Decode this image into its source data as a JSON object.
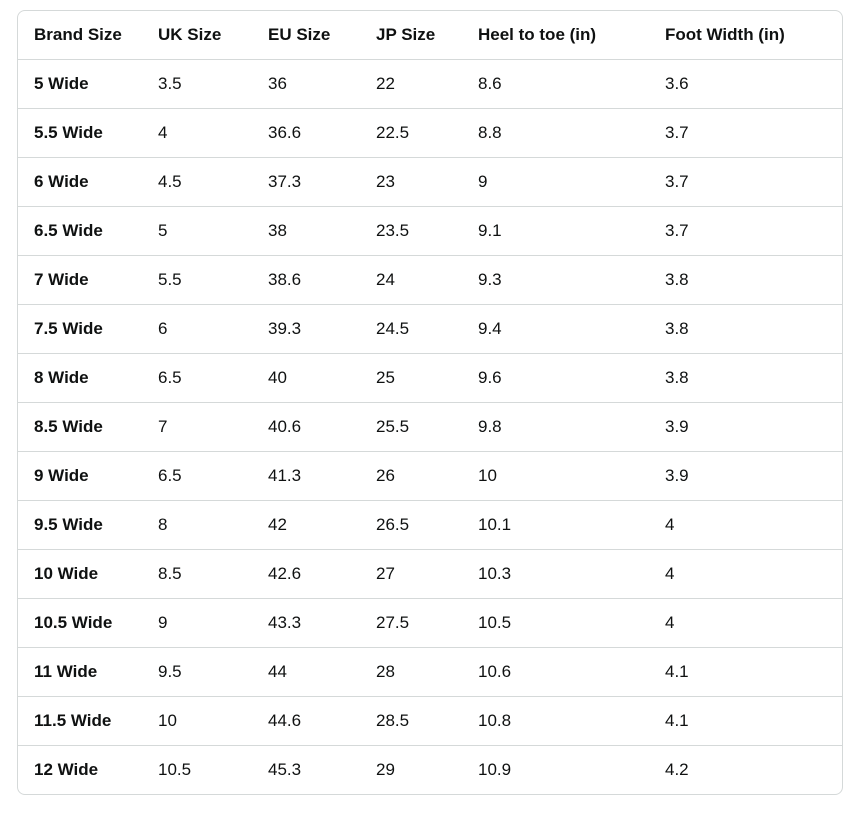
{
  "size_chart": {
    "columns": [
      "Brand Size",
      "UK Size",
      "EU Size",
      "JP Size",
      "Heel to toe (in)",
      "Foot Width (in)"
    ],
    "rows": [
      [
        "5 Wide",
        "3.5",
        "36",
        "22",
        "8.6",
        "3.6"
      ],
      [
        "5.5 Wide",
        "4",
        "36.6",
        "22.5",
        "8.8",
        "3.7"
      ],
      [
        "6 Wide",
        "4.5",
        "37.3",
        "23",
        "9",
        "3.7"
      ],
      [
        "6.5 Wide",
        "5",
        "38",
        "23.5",
        "9.1",
        "3.7"
      ],
      [
        "7 Wide",
        "5.5",
        "38.6",
        "24",
        "9.3",
        "3.8"
      ],
      [
        "7.5 Wide",
        "6",
        "39.3",
        "24.5",
        "9.4",
        "3.8"
      ],
      [
        "8 Wide",
        "6.5",
        "40",
        "25",
        "9.6",
        "3.8"
      ],
      [
        "8.5 Wide",
        "7",
        "40.6",
        "25.5",
        "9.8",
        "3.9"
      ],
      [
        "9 Wide",
        "6.5",
        "41.3",
        "26",
        "10",
        "3.9"
      ],
      [
        "9.5 Wide",
        "8",
        "42",
        "26.5",
        "10.1",
        "4"
      ],
      [
        "10 Wide",
        "8.5",
        "42.6",
        "27",
        "10.3",
        "4"
      ],
      [
        "10.5 Wide",
        "9",
        "43.3",
        "27.5",
        "10.5",
        "4"
      ],
      [
        "11 Wide",
        "9.5",
        "44",
        "28",
        "10.6",
        "4.1"
      ],
      [
        "11.5 Wide",
        "10",
        "44.6",
        "28.5",
        "10.8",
        "4.1"
      ],
      [
        "12 Wide",
        "10.5",
        "45.3",
        "29",
        "10.9",
        "4.2"
      ]
    ],
    "colors": {
      "border": "#d5d9d9",
      "text": "#0f1111",
      "background": "#ffffff"
    }
  }
}
